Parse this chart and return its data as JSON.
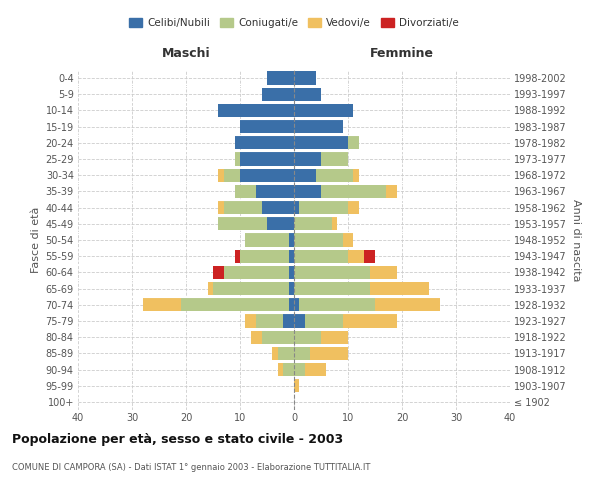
{
  "age_groups": [
    "100+",
    "95-99",
    "90-94",
    "85-89",
    "80-84",
    "75-79",
    "70-74",
    "65-69",
    "60-64",
    "55-59",
    "50-54",
    "45-49",
    "40-44",
    "35-39",
    "30-34",
    "25-29",
    "20-24",
    "15-19",
    "10-14",
    "5-9",
    "0-4"
  ],
  "birth_years": [
    "≤ 1902",
    "1903-1907",
    "1908-1912",
    "1913-1917",
    "1918-1922",
    "1923-1927",
    "1928-1932",
    "1933-1937",
    "1938-1942",
    "1943-1947",
    "1948-1952",
    "1953-1957",
    "1958-1962",
    "1963-1967",
    "1968-1972",
    "1973-1977",
    "1978-1982",
    "1983-1987",
    "1988-1992",
    "1993-1997",
    "1998-2002"
  ],
  "maschi": {
    "celibi": [
      0,
      0,
      0,
      0,
      0,
      2,
      1,
      1,
      1,
      1,
      1,
      5,
      6,
      7,
      10,
      10,
      11,
      10,
      14,
      6,
      5
    ],
    "coniugati": [
      0,
      0,
      2,
      3,
      6,
      5,
      20,
      14,
      12,
      9,
      8,
      9,
      7,
      4,
      3,
      1,
      0,
      0,
      0,
      0,
      0
    ],
    "vedovi": [
      0,
      0,
      1,
      1,
      2,
      2,
      7,
      1,
      0,
      0,
      0,
      0,
      1,
      0,
      1,
      0,
      0,
      0,
      0,
      0,
      0
    ],
    "divorziati": [
      0,
      0,
      0,
      0,
      0,
      0,
      0,
      0,
      2,
      1,
      0,
      0,
      0,
      0,
      0,
      0,
      0,
      0,
      0,
      0,
      0
    ]
  },
  "femmine": {
    "nubili": [
      0,
      0,
      0,
      0,
      0,
      2,
      1,
      0,
      0,
      0,
      0,
      0,
      1,
      5,
      4,
      5,
      10,
      9,
      11,
      5,
      4
    ],
    "coniugate": [
      0,
      0,
      2,
      3,
      5,
      7,
      14,
      14,
      14,
      10,
      9,
      7,
      9,
      12,
      7,
      5,
      2,
      0,
      0,
      0,
      0
    ],
    "vedove": [
      0,
      1,
      4,
      7,
      5,
      10,
      12,
      11,
      5,
      3,
      2,
      1,
      2,
      2,
      1,
      0,
      0,
      0,
      0,
      0,
      0
    ],
    "divorziate": [
      0,
      0,
      0,
      0,
      0,
      0,
      0,
      0,
      0,
      2,
      0,
      0,
      0,
      0,
      0,
      0,
      0,
      0,
      0,
      0,
      0
    ]
  },
  "color_celibi": "#3a6fa8",
  "color_coniugati": "#b5c98a",
  "color_vedovi": "#f0c060",
  "color_divorziati": "#cc2222",
  "title_main": "Popolazione per età, sesso e stato civile - 2003",
  "title_sub": "COMUNE DI CAMPORA (SA) - Dati ISTAT 1° gennaio 2003 - Elaborazione TUTTITALIA.IT",
  "xlabel_left": "Maschi",
  "xlabel_right": "Femmine",
  "ylabel_left": "Fasce di età",
  "ylabel_right": "Anni di nascita",
  "xlim": 40,
  "background_color": "#ffffff",
  "grid_color": "#cccccc"
}
